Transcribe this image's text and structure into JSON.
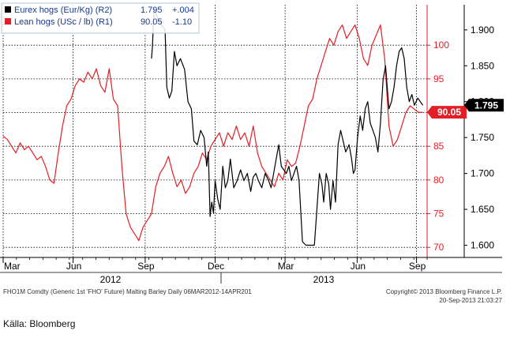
{
  "chart_data": {
    "type": "line",
    "legend": {
      "placement": "top-left",
      "entries": [
        {
          "text": "Eurex hogs (Eur/Kg) (R2)",
          "value": "1.795",
          "change": "+.004",
          "color": "#000000"
        },
        {
          "text": "Lean hogs (USc / lb) (R1)",
          "value": "90.05",
          "change": "-1.10",
          "color": "#e21f26"
        }
      ]
    },
    "x_tick_labels": [
      "Mar",
      "Jun",
      "Sep",
      "Dec",
      "Mar",
      "Jun",
      "Sep"
    ],
    "year_labels": [
      "2012",
      "2013"
    ],
    "left_axis": {
      "side": "inner-right",
      "color": "#e21f26",
      "ticks": [
        "100",
        "95",
        "90",
        "85",
        "80",
        "75",
        "70"
      ],
      "ylim": [
        68.5,
        106
      ]
    },
    "right_axis": {
      "side": "outer-right",
      "color": "#000000",
      "ticks": [
        "1.900",
        "1.850",
        "1.800",
        "1.750",
        "1.700",
        "1.650",
        "1.600"
      ],
      "ylim": [
        1.583,
        1.935
      ]
    },
    "last_value_tags": [
      {
        "series": "Lean hogs (USc / lb) (R1)",
        "text": "90.05",
        "value": 90.05,
        "color": "#e21f26"
      },
      {
        "series": "Eurex hogs (Eur/Kg) (R2)",
        "text": "1.795",
        "value": 1.795,
        "color": "#000000"
      }
    ],
    "grid": true,
    "footer_left": "FHO1M Comdty (Generic 1st 'FHO' Future) Malting Barley  Daily 06MAR2012-14APR201",
    "footer_right_1": "Copyright© 2013 Bloomberg Finance L.P.",
    "footer_right_2": "20-Sep-2013 21:03:27",
    "series": [
      {
        "name": "Lean hogs (USc / lb) (R1)",
        "color": "#e21f26",
        "axis": "left",
        "points": [
          [
            0.0,
            86.5
          ],
          [
            0.01,
            86
          ],
          [
            0.02,
            85
          ],
          [
            0.03,
            84
          ],
          [
            0.04,
            85.5
          ],
          [
            0.05,
            84.5
          ],
          [
            0.06,
            85
          ],
          [
            0.07,
            84
          ],
          [
            0.08,
            83
          ],
          [
            0.09,
            83.5
          ],
          [
            0.1,
            82
          ],
          [
            0.11,
            80
          ],
          [
            0.12,
            79.5
          ],
          [
            0.13,
            84
          ],
          [
            0.14,
            88
          ],
          [
            0.15,
            91
          ],
          [
            0.16,
            92
          ],
          [
            0.17,
            94
          ],
          [
            0.18,
            95
          ],
          [
            0.19,
            94.5
          ],
          [
            0.2,
            96
          ],
          [
            0.21,
            95
          ],
          [
            0.22,
            96.5
          ],
          [
            0.23,
            94
          ],
          [
            0.24,
            93
          ],
          [
            0.25,
            96.5
          ],
          [
            0.26,
            92
          ],
          [
            0.27,
            91
          ],
          [
            0.28,
            82
          ],
          [
            0.29,
            75
          ],
          [
            0.3,
            73
          ],
          [
            0.31,
            72
          ],
          [
            0.32,
            71
          ],
          [
            0.33,
            73
          ],
          [
            0.34,
            74
          ],
          [
            0.35,
            75
          ],
          [
            0.36,
            79
          ],
          [
            0.37,
            81
          ],
          [
            0.38,
            82
          ],
          [
            0.39,
            83.5
          ],
          [
            0.4,
            81
          ],
          [
            0.41,
            79
          ],
          [
            0.42,
            80
          ],
          [
            0.43,
            78
          ],
          [
            0.44,
            79
          ],
          [
            0.45,
            81
          ],
          [
            0.46,
            82
          ],
          [
            0.47,
            84
          ],
          [
            0.48,
            83
          ],
          [
            0.49,
            85
          ],
          [
            0.5,
            86
          ],
          [
            0.51,
            87
          ],
          [
            0.52,
            85
          ],
          [
            0.53,
            87
          ],
          [
            0.54,
            86
          ],
          [
            0.55,
            88
          ],
          [
            0.56,
            86
          ],
          [
            0.57,
            87
          ],
          [
            0.58,
            85
          ],
          [
            0.59,
            88
          ],
          [
            0.6,
            84
          ],
          [
            0.61,
            82
          ],
          [
            0.62,
            81
          ],
          [
            0.63,
            80
          ],
          [
            0.64,
            79
          ],
          [
            0.65,
            81
          ],
          [
            0.66,
            80
          ],
          [
            0.67,
            83
          ],
          [
            0.68,
            82
          ],
          [
            0.69,
            82.5
          ],
          [
            0.7,
            85
          ],
          [
            0.71,
            88
          ],
          [
            0.72,
            91
          ],
          [
            0.73,
            92
          ],
          [
            0.74,
            95
          ],
          [
            0.75,
            97
          ],
          [
            0.76,
            99
          ],
          [
            0.77,
            101
          ],
          [
            0.78,
            100
          ],
          [
            0.79,
            102
          ],
          [
            0.8,
            103
          ],
          [
            0.81,
            101
          ],
          [
            0.82,
            102
          ],
          [
            0.83,
            103
          ],
          [
            0.84,
            101
          ],
          [
            0.85,
            98
          ],
          [
            0.86,
            97
          ],
          [
            0.87,
            100
          ],
          [
            0.88,
            101.5
          ],
          [
            0.89,
            103
          ],
          [
            0.9,
            98
          ],
          [
            0.91,
            88
          ],
          [
            0.92,
            85
          ],
          [
            0.93,
            86
          ],
          [
            0.94,
            88
          ],
          [
            0.95,
            90
          ],
          [
            0.96,
            91
          ],
          [
            0.97,
            90.5
          ],
          [
            0.98,
            90
          ],
          [
            0.99,
            90.05
          ]
        ]
      },
      {
        "name": "Eurex hogs (Eur/Kg) (R2)",
        "color": "#000000",
        "axis": "right",
        "points": [
          [
            0.35,
            1.86
          ],
          [
            0.352,
            1.875
          ],
          [
            0.356,
            1.93
          ],
          [
            0.365,
            1.915
          ],
          [
            0.375,
            1.905
          ],
          [
            0.382,
            1.9
          ],
          [
            0.386,
            1.82
          ],
          [
            0.392,
            1.805
          ],
          [
            0.398,
            1.815
          ],
          [
            0.404,
            1.87
          ],
          [
            0.41,
            1.85
          ],
          [
            0.418,
            1.86
          ],
          [
            0.428,
            1.845
          ],
          [
            0.436,
            1.8
          ],
          [
            0.444,
            1.79
          ],
          [
            0.45,
            1.745
          ],
          [
            0.458,
            1.74
          ],
          [
            0.466,
            1.76
          ],
          [
            0.474,
            1.75
          ],
          [
            0.48,
            1.71
          ],
          [
            0.484,
            1.73
          ],
          [
            0.488,
            1.64
          ],
          [
            0.492,
            1.66
          ],
          [
            0.496,
            1.645
          ],
          [
            0.5,
            1.69
          ],
          [
            0.506,
            1.665
          ],
          [
            0.512,
            1.65
          ],
          [
            0.518,
            1.71
          ],
          [
            0.524,
            1.68
          ],
          [
            0.53,
            1.69
          ],
          [
            0.536,
            1.72
          ],
          [
            0.544,
            1.68
          ],
          [
            0.552,
            1.69
          ],
          [
            0.56,
            1.705
          ],
          [
            0.568,
            1.69
          ],
          [
            0.576,
            1.7
          ],
          [
            0.584,
            1.675
          ],
          [
            0.59,
            1.695
          ],
          [
            0.596,
            1.7
          ],
          [
            0.602,
            1.69
          ],
          [
            0.61,
            1.68
          ],
          [
            0.618,
            1.7
          ],
          [
            0.626,
            1.69
          ],
          [
            0.632,
            1.68
          ],
          [
            0.638,
            1.7
          ],
          [
            0.644,
            1.72
          ],
          [
            0.65,
            1.74
          ],
          [
            0.656,
            1.71
          ],
          [
            0.662,
            1.705
          ],
          [
            0.668,
            1.7
          ],
          [
            0.674,
            1.71
          ],
          [
            0.68,
            1.69
          ],
          [
            0.686,
            1.7
          ],
          [
            0.692,
            1.71
          ],
          [
            0.698,
            1.69
          ],
          [
            0.706,
            1.605
          ],
          [
            0.714,
            1.6
          ],
          [
            0.724,
            1.6
          ],
          [
            0.734,
            1.6
          ],
          [
            0.74,
            1.65
          ],
          [
            0.746,
            1.7
          ],
          [
            0.752,
            1.685
          ],
          [
            0.756,
            1.66
          ],
          [
            0.762,
            1.7
          ],
          [
            0.768,
            1.685
          ],
          [
            0.772,
            1.65
          ],
          [
            0.778,
            1.69
          ],
          [
            0.784,
            1.66
          ],
          [
            0.79,
            1.74
          ],
          [
            0.796,
            1.76
          ],
          [
            0.802,
            1.745
          ],
          [
            0.808,
            1.73
          ],
          [
            0.816,
            1.74
          ],
          [
            0.822,
            1.72
          ],
          [
            0.826,
            1.7
          ],
          [
            0.83,
            1.705
          ],
          [
            0.836,
            1.75
          ],
          [
            0.842,
            1.78
          ],
          [
            0.848,
            1.76
          ],
          [
            0.854,
            1.79
          ],
          [
            0.86,
            1.8
          ],
          [
            0.866,
            1.77
          ],
          [
            0.872,
            1.76
          ],
          [
            0.878,
            1.75
          ],
          [
            0.884,
            1.73
          ],
          [
            0.89,
            1.77
          ],
          [
            0.896,
            1.83
          ],
          [
            0.902,
            1.85
          ],
          [
            0.906,
            1.82
          ],
          [
            0.91,
            1.79
          ],
          [
            0.916,
            1.8
          ],
          [
            0.922,
            1.82
          ],
          [
            0.928,
            1.85
          ],
          [
            0.934,
            1.87
          ],
          [
            0.94,
            1.875
          ],
          [
            0.946,
            1.86
          ],
          [
            0.952,
            1.82
          ],
          [
            0.958,
            1.8
          ],
          [
            0.964,
            1.81
          ],
          [
            0.97,
            1.795
          ],
          [
            0.978,
            1.805
          ],
          [
            0.99,
            1.795
          ]
        ]
      }
    ]
  },
  "caption": "Källa: Bloomberg"
}
